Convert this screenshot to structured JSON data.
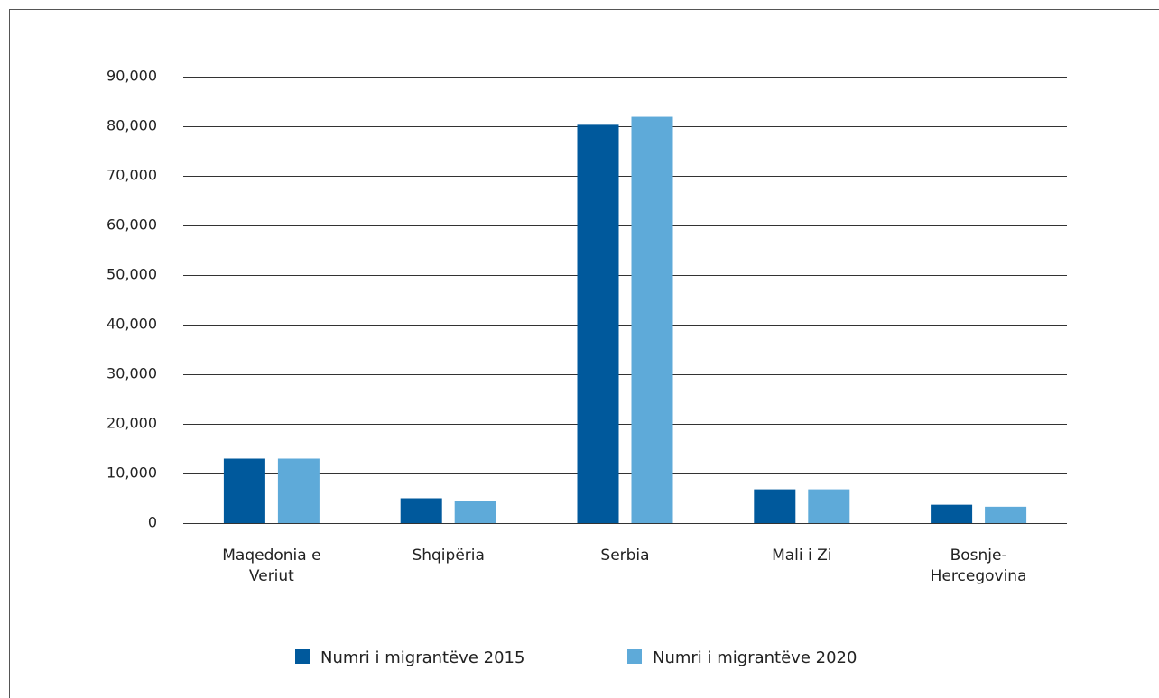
{
  "chart_data": {
    "type": "bar",
    "categories": [
      "Maqedonia e Veriut",
      "Shqipëria",
      "Serbia",
      "Mali i Zi",
      "Bosnje-Hercegovina"
    ],
    "series": [
      {
        "name": "Numri i migrantëve 2015",
        "color": "#00599c",
        "values": [
          13000,
          5000,
          80300,
          6800,
          3700
        ]
      },
      {
        "name": "Numri i migrantëve 2020",
        "color": "#5eaad9",
        "values": [
          13000,
          4400,
          81900,
          6800,
          3300
        ]
      }
    ],
    "ylim": [
      0,
      90000
    ],
    "yticks": [
      0,
      {
        "value": 10000,
        "label": "10,000"
      },
      {
        "value": 20000,
        "label": "20,000"
      },
      {
        "value": 30000,
        "label": "30,000"
      },
      {
        "value": 40000,
        "label": "40,000"
      },
      {
        "value": 50000,
        "label": "50,000"
      },
      {
        "value": 60000,
        "label": "60,000"
      },
      {
        "value": 70000,
        "label": "70,000"
      },
      {
        "value": 80000,
        "label": "80,000"
      },
      {
        "value": 90000,
        "label": "90,000"
      }
    ],
    "grid": true,
    "legend": "bottom"
  }
}
